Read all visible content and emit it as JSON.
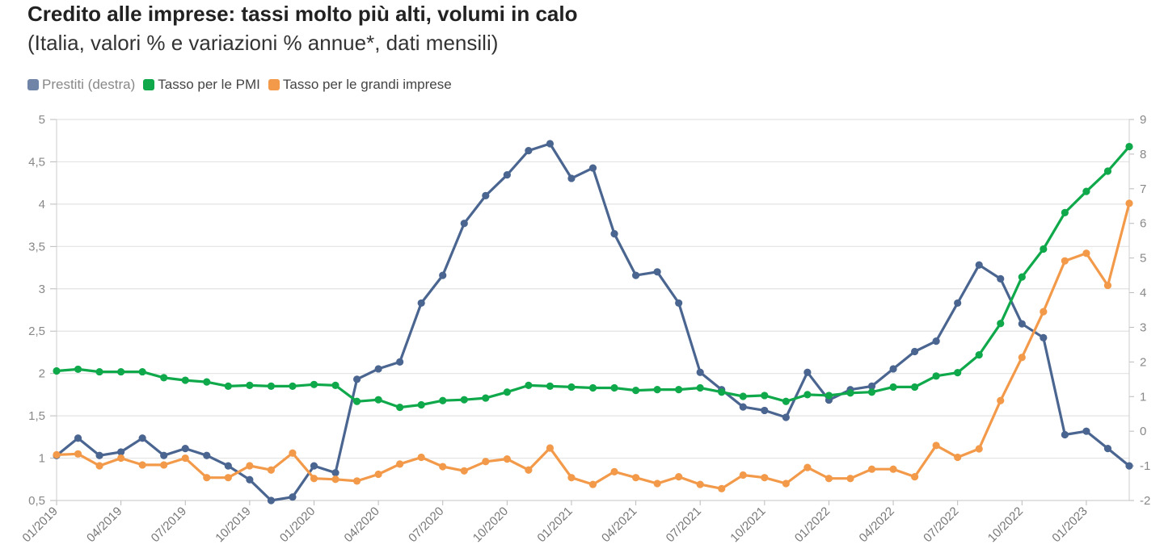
{
  "title": "Credito alle imprese: tassi molto più alti, volumi in calo",
  "subtitle": "(Italia, valori % e variazioni % annue*, dati mensili)",
  "chart_data": {
    "type": "line",
    "x": [
      "01/2019",
      "02/2019",
      "03/2019",
      "04/2019",
      "05/2019",
      "06/2019",
      "07/2019",
      "08/2019",
      "09/2019",
      "10/2019",
      "11/2019",
      "12/2019",
      "01/2020",
      "02/2020",
      "03/2020",
      "04/2020",
      "05/2020",
      "06/2020",
      "07/2020",
      "08/2020",
      "09/2020",
      "10/2020",
      "11/2020",
      "12/2020",
      "01/2021",
      "02/2021",
      "03/2021",
      "04/2021",
      "05/2021",
      "06/2021",
      "07/2021",
      "08/2021",
      "09/2021",
      "10/2021",
      "11/2021",
      "12/2021",
      "01/2022",
      "02/2022",
      "03/2022",
      "04/2022",
      "05/2022",
      "06/2022",
      "07/2022",
      "08/2022",
      "09/2022",
      "10/2022",
      "11/2022",
      "12/2022",
      "01/2023",
      "02/2023",
      "03/2023"
    ],
    "x_tick_labels": [
      "01/2019",
      "04/2019",
      "07/2019",
      "10/2019",
      "01/2020",
      "04/2020",
      "07/2020",
      "10/2020",
      "01/2021",
      "04/2021",
      "07/2021",
      "10/2021",
      "01/2022",
      "04/2022",
      "07/2022",
      "10/2022",
      "01/2023"
    ],
    "y_left": {
      "range": [
        0.5,
        5
      ],
      "ticks": [
        "0,5",
        "1",
        "1,5",
        "2",
        "2,5",
        "3",
        "3,5",
        "4",
        "4,5",
        "5"
      ]
    },
    "y_right": {
      "range": [
        -2,
        9
      ],
      "ticks": [
        "-2",
        "-1",
        "0",
        "1",
        "2",
        "3",
        "4",
        "5",
        "6",
        "7",
        "8",
        "9"
      ]
    },
    "grid": true,
    "legend_position": "top-left",
    "series": [
      {
        "name": "Prestiti (destra)",
        "axis": "right",
        "color": "#4a6590",
        "values": [
          -0.7,
          -0.2,
          -0.7,
          -0.6,
          -0.2,
          -0.7,
          -0.5,
          -0.7,
          -1.0,
          -1.4,
          -2.0,
          -1.9,
          -1.0,
          -1.2,
          1.5,
          1.8,
          2.0,
          3.7,
          4.5,
          6.0,
          6.8,
          7.4,
          8.1,
          8.3,
          7.3,
          7.6,
          5.7,
          4.5,
          4.6,
          3.7,
          1.7,
          1.2,
          0.7,
          0.6,
          0.4,
          1.7,
          0.9,
          1.2,
          1.3,
          1.8,
          2.3,
          2.6,
          3.7,
          4.8,
          4.4,
          3.1,
          2.7,
          -0.1,
          0.0,
          -0.5,
          -1.0
        ]
      },
      {
        "name": "Tasso per le PMI",
        "axis": "left",
        "color": "#0fa94b",
        "values": [
          2.03,
          2.05,
          2.02,
          2.02,
          2.02,
          1.95,
          1.92,
          1.9,
          1.85,
          1.86,
          1.85,
          1.85,
          1.87,
          1.86,
          1.67,
          1.69,
          1.6,
          1.63,
          1.68,
          1.69,
          1.71,
          1.78,
          1.86,
          1.85,
          1.84,
          1.83,
          1.83,
          1.8,
          1.81,
          1.81,
          1.83,
          1.78,
          1.73,
          1.74,
          1.67,
          1.75,
          1.74,
          1.77,
          1.78,
          1.84,
          1.84,
          1.97,
          2.01,
          2.22,
          2.59,
          3.14,
          3.47,
          3.9,
          4.15,
          4.39,
          4.68
        ]
      },
      {
        "name": "Tasso per le grandi imprese",
        "axis": "left",
        "color": "#f39a4a",
        "values": [
          1.04,
          1.05,
          0.91,
          1.0,
          0.92,
          0.92,
          1.0,
          0.77,
          0.77,
          0.91,
          0.86,
          1.06,
          0.76,
          0.75,
          0.73,
          0.81,
          0.93,
          1.01,
          0.9,
          0.85,
          0.96,
          0.99,
          0.86,
          1.12,
          0.77,
          0.69,
          0.84,
          0.77,
          0.7,
          0.78,
          0.69,
          0.64,
          0.8,
          0.77,
          0.7,
          0.89,
          0.76,
          0.76,
          0.87,
          0.87,
          0.78,
          1.15,
          1.01,
          1.11,
          1.68,
          2.19,
          2.73,
          3.33,
          3.42,
          3.04,
          4.01
        ]
      }
    ]
  }
}
